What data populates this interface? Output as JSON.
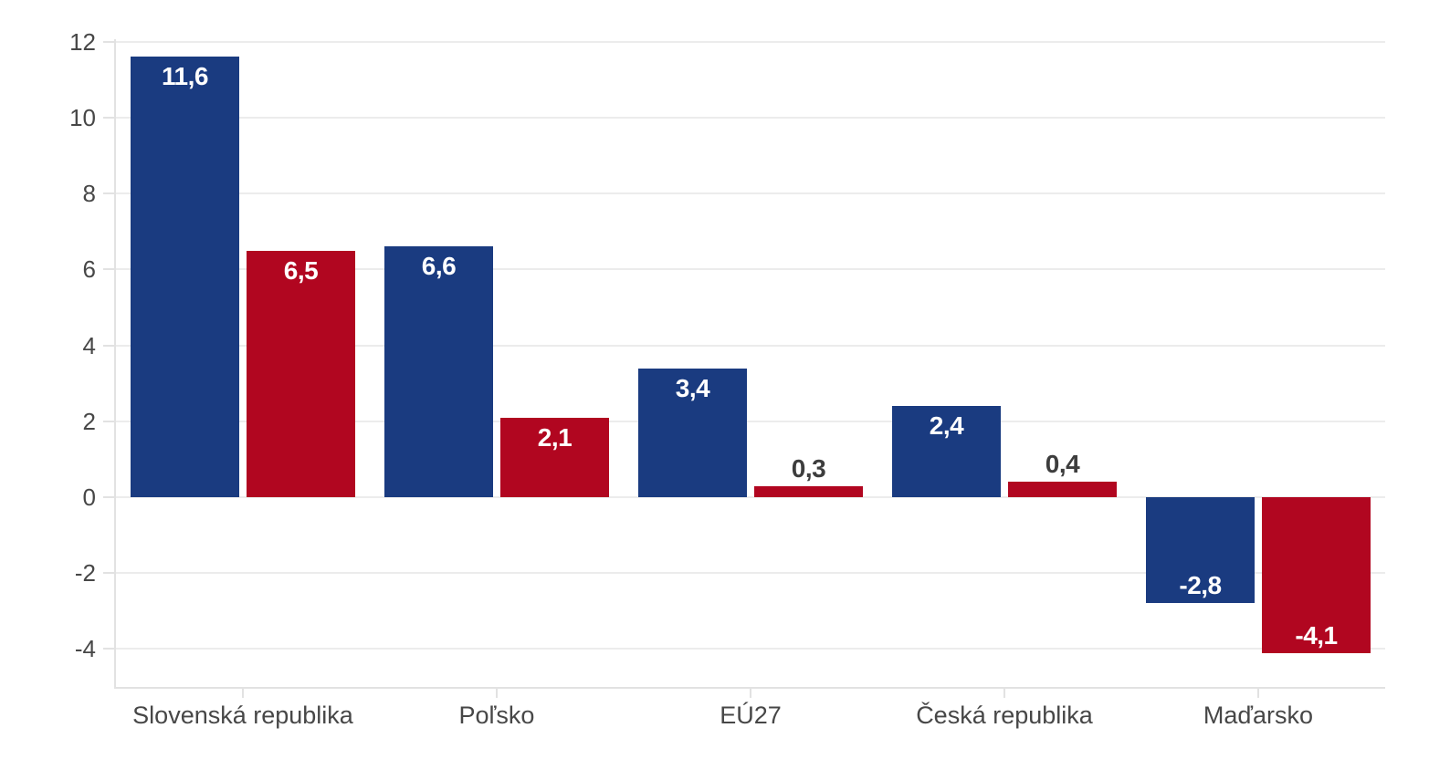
{
  "chart_data": {
    "type": "bar",
    "categories": [
      "Slovenská republika",
      "Poľsko",
      "EÚ27",
      "Česká republika",
      "Maďarsko"
    ],
    "series": [
      {
        "name": "blue-series",
        "color": "#1A3B80",
        "values": [
          11.6,
          6.6,
          3.4,
          2.4,
          -2.8
        ],
        "labels": [
          "11,6",
          "6,6",
          "3,4",
          "2,4",
          "-2,8"
        ]
      },
      {
        "name": "red-series",
        "color": "#B10620",
        "values": [
          6.5,
          2.1,
          0.3,
          0.4,
          -4.1
        ],
        "labels": [
          "6,5",
          "2,1",
          "0,3",
          "0,4",
          "-4,1"
        ]
      }
    ],
    "y_ticks": [
      12,
      10,
      8,
      6,
      4,
      2,
      0,
      -2,
      -4
    ],
    "y_tick_labels": [
      "12",
      "10",
      "8",
      "6",
      "4",
      "2",
      "0",
      "-2",
      "-4"
    ],
    "ylim": [
      -5,
      12
    ],
    "grid": true,
    "legend_position": "none",
    "title": "",
    "xlabel": "",
    "ylabel": ""
  },
  "style": {
    "background": "#ffffff",
    "grid_color": "#ececec",
    "axis_color": "#e2e2e2",
    "axis_text_color": "#474747",
    "value_label_inside_color": "#ffffff",
    "value_label_outside_color": "#3d3d3d"
  }
}
